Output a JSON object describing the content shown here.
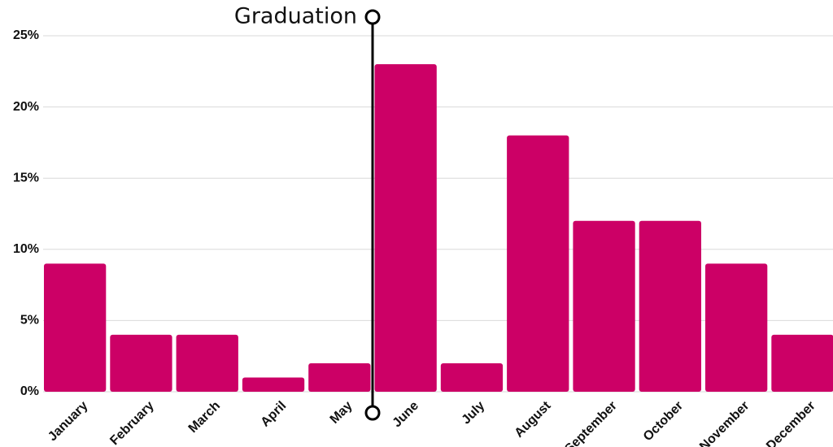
{
  "chart_data": {
    "type": "bar",
    "categories": [
      "January",
      "February",
      "March",
      "April",
      "May",
      "June",
      "July",
      "August",
      "September",
      "October",
      "November",
      "December"
    ],
    "values": [
      9,
      4,
      4,
      1,
      2,
      23,
      2,
      18,
      12,
      12,
      9,
      4
    ],
    "color": "#cc0066",
    "ylim": [
      0,
      25
    ],
    "yticks": [
      {
        "value": 0,
        "label": "0%"
      },
      {
        "value": 5,
        "label": "5%"
      },
      {
        "value": 10,
        "label": "10%"
      },
      {
        "value": 15,
        "label": "15%"
      },
      {
        "value": 20,
        "label": "20%"
      },
      {
        "value": 25,
        "label": "25%"
      }
    ],
    "grid": true,
    "annotation": "Graduation"
  }
}
